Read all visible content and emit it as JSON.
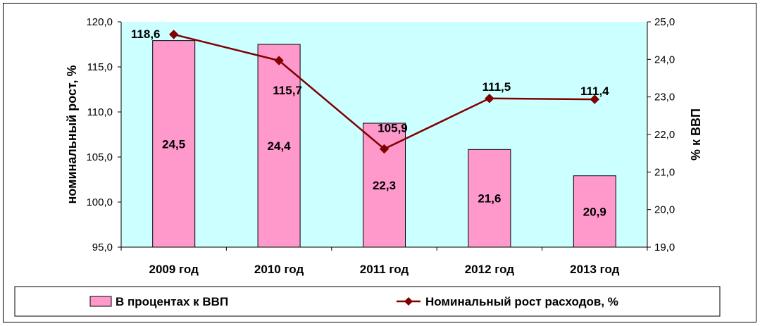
{
  "chart_data": {
    "type": "bar+line",
    "categories": [
      "2009 год",
      "2010 год",
      "2011 год",
      "2012 год",
      "2013 год"
    ],
    "series": [
      {
        "name": "В процентах к ВВП",
        "type": "bar",
        "axis": "right",
        "values": [
          24.5,
          24.4,
          22.3,
          21.6,
          20.9
        ],
        "labels": [
          "24,5",
          "24,4",
          "22,3",
          "21,6",
          "20,9"
        ],
        "color": "#ff99cc"
      },
      {
        "name": "Номинальный рост расходов, %",
        "type": "line",
        "axis": "left",
        "values": [
          118.6,
          115.7,
          105.9,
          111.5,
          111.4
        ],
        "labels": [
          "118,6",
          "115,7",
          "105,9",
          "111,5",
          "111,4"
        ],
        "color": "#800000"
      }
    ],
    "y_left": {
      "label": "номинальный рост, %",
      "range": [
        95,
        120
      ],
      "ticks": [
        "95,0",
        "100,0",
        "105,0",
        "110,0",
        "115,0",
        "120,0"
      ]
    },
    "y_right": {
      "label": "% к ВВП",
      "range": [
        19,
        25
      ],
      "ticks": [
        "19,0",
        "20,0",
        "21,0",
        "22,0",
        "23,0",
        "24,0",
        "25,0"
      ]
    },
    "plot_background": "#ccffff",
    "legend_position": "bottom"
  }
}
